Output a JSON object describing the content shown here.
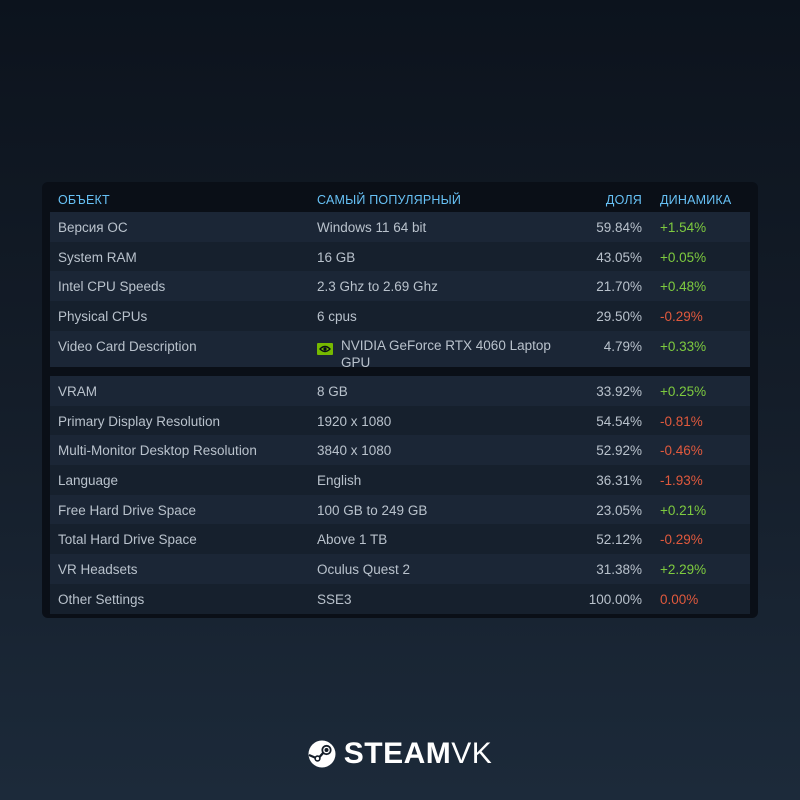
{
  "table": {
    "headers": {
      "object": "ОБЪЕКТ",
      "popular": "САМЫЙ ПОПУЛЯРНЫЙ",
      "share": "ДОЛЯ",
      "change": "ДИНАМИКА"
    },
    "group1": [
      {
        "name": "Версия ОС",
        "value": "Windows 11 64 bit",
        "share": "59.84%",
        "change": "+1.54%",
        "trend": "pos"
      },
      {
        "name": "System RAM",
        "value": "16 GB",
        "share": "43.05%",
        "change": "+0.05%",
        "trend": "pos"
      },
      {
        "name": "Intel CPU Speeds",
        "value": "2.3 Ghz to 2.69 Ghz",
        "share": "21.70%",
        "change": "+0.48%",
        "trend": "pos"
      },
      {
        "name": "Physical CPUs",
        "value": "6 cpus",
        "share": "29.50%",
        "change": "-0.29%",
        "trend": "neg"
      },
      {
        "name": "Video Card Description",
        "value": "NVIDIA GeForce RTX 4060 Laptop GPU",
        "share": "4.79%",
        "change": "+0.33%",
        "trend": "pos",
        "icon": "nvidia-icon"
      }
    ],
    "group2": [
      {
        "name": "VRAM",
        "value": "8 GB",
        "share": "33.92%",
        "change": "+0.25%",
        "trend": "pos"
      },
      {
        "name": "Primary Display Resolution",
        "value": "1920 x 1080",
        "share": "54.54%",
        "change": "-0.81%",
        "trend": "neg"
      },
      {
        "name": "Multi-Monitor Desktop Resolution",
        "value": "3840 x 1080",
        "share": "52.92%",
        "change": "-0.46%",
        "trend": "neg"
      },
      {
        "name": "Language",
        "value": "English",
        "share": "36.31%",
        "change": "-1.93%",
        "trend": "neg"
      },
      {
        "name": "Free Hard Drive Space",
        "value": "100 GB to 249 GB",
        "share": "23.05%",
        "change": "+0.21%",
        "trend": "pos"
      },
      {
        "name": "Total Hard Drive Space",
        "value": "Above 1 TB",
        "share": "52.12%",
        "change": "-0.29%",
        "trend": "neg"
      },
      {
        "name": "VR Headsets",
        "value": "Oculus Quest 2",
        "share": "31.38%",
        "change": "+2.29%",
        "trend": "pos"
      },
      {
        "name": "Other Settings",
        "value": "SSE3",
        "share": "100.00%",
        "change": "0.00%",
        "trend": "neg"
      }
    ]
  },
  "brand": {
    "part1": "STEAM",
    "part2": "VK",
    "icon": "steam-icon"
  },
  "colors": {
    "header": "#67c1f5",
    "positive": "#7ecb3f",
    "negative": "#e0593d",
    "nvidia": "#76b900"
  }
}
